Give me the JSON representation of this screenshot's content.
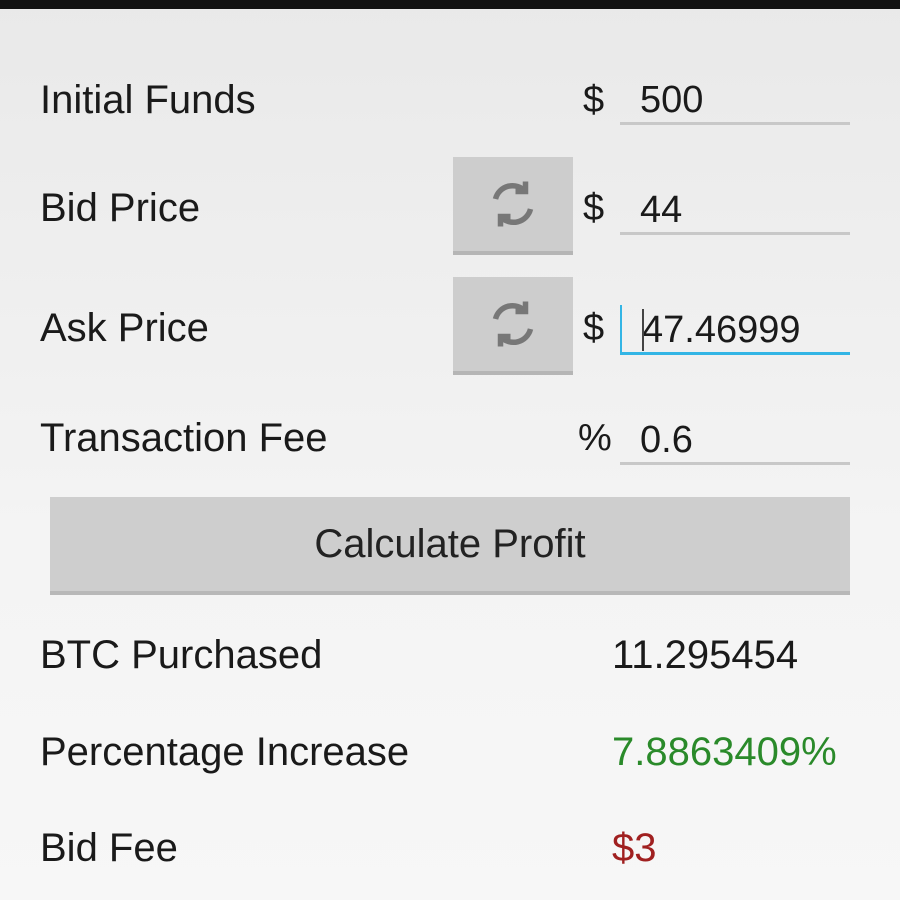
{
  "form": {
    "initial_funds": {
      "label": "Initial Funds",
      "unit": "$",
      "value": "500"
    },
    "bid_price": {
      "label": "Bid Price",
      "unit": "$",
      "value": "44",
      "refresh_icon": "refresh-icon"
    },
    "ask_price": {
      "label": "Ask Price",
      "unit": "$",
      "value": "47.46999",
      "refresh_icon": "refresh-icon"
    },
    "transaction_fee": {
      "label": "Transaction Fee",
      "unit": "%",
      "value": "0.6"
    }
  },
  "calculate_label": "Calculate Profit",
  "results": {
    "btc_purchased": {
      "label": "BTC Purchased",
      "value": "11.295454"
    },
    "percentage_increase": {
      "label": "Percentage Increase",
      "value": "7.8863409%",
      "color": "#2a8a2a"
    },
    "bid_fee": {
      "label": "Bid Fee",
      "value": "$3",
      "color": "#a02020"
    }
  },
  "colors": {
    "focus": "#33b5e5"
  }
}
